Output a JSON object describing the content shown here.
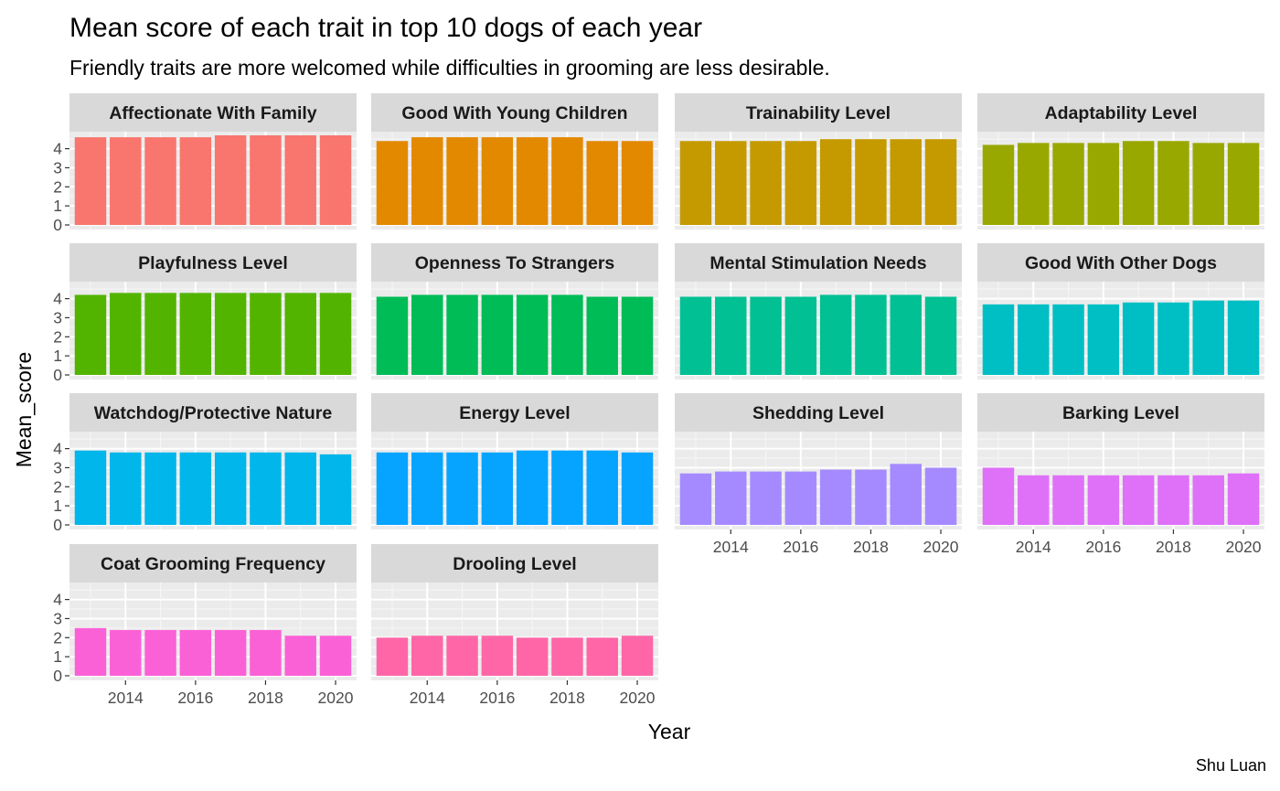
{
  "chart_data": {
    "type": "bar",
    "title": "Mean score of each trait in top 10 dogs of each year",
    "subtitle": "Friendly traits are more welcomed while difficulties in grooming are less desirable.",
    "xlabel": "Year",
    "ylabel": "Mean_score",
    "caption": "Shu Luan",
    "x": [
      2013,
      2014,
      2015,
      2016,
      2017,
      2018,
      2019,
      2020
    ],
    "x_ticks": [
      2014,
      2016,
      2018,
      2020
    ],
    "y_ticks": [
      0,
      1,
      2,
      3,
      4
    ],
    "ylim": [
      0,
      5
    ],
    "grid": true,
    "facets": [
      {
        "name": "Affectionate With Family",
        "color": "#F8766D",
        "values": [
          4.6,
          4.6,
          4.6,
          4.6,
          4.7,
          4.7,
          4.7,
          4.7
        ]
      },
      {
        "name": "Good With Young Children",
        "color": "#E38900",
        "values": [
          4.4,
          4.6,
          4.6,
          4.6,
          4.6,
          4.6,
          4.4,
          4.4
        ]
      },
      {
        "name": "Trainability Level",
        "color": "#C49A00",
        "values": [
          4.4,
          4.4,
          4.4,
          4.4,
          4.5,
          4.5,
          4.5,
          4.5
        ]
      },
      {
        "name": "Adaptability Level",
        "color": "#99A800",
        "values": [
          4.2,
          4.3,
          4.3,
          4.3,
          4.4,
          4.4,
          4.3,
          4.3
        ]
      },
      {
        "name": "Playfulness Level",
        "color": "#53B400",
        "values": [
          4.2,
          4.3,
          4.3,
          4.3,
          4.3,
          4.3,
          4.3,
          4.3
        ]
      },
      {
        "name": "Openness To Strangers",
        "color": "#00BC56",
        "values": [
          4.1,
          4.2,
          4.2,
          4.2,
          4.2,
          4.2,
          4.1,
          4.1
        ]
      },
      {
        "name": "Mental Stimulation Needs",
        "color": "#00C094",
        "values": [
          4.1,
          4.1,
          4.1,
          4.1,
          4.2,
          4.2,
          4.2,
          4.1
        ]
      },
      {
        "name": "Good With Other Dogs",
        "color": "#00BFC4",
        "values": [
          3.7,
          3.7,
          3.7,
          3.7,
          3.8,
          3.8,
          3.9,
          3.9
        ]
      },
      {
        "name": "Watchdog/Protective Nature",
        "color": "#00B6EB",
        "values": [
          3.9,
          3.8,
          3.8,
          3.8,
          3.8,
          3.8,
          3.8,
          3.7
        ]
      },
      {
        "name": "Energy Level",
        "color": "#06A4FF",
        "values": [
          3.8,
          3.8,
          3.8,
          3.8,
          3.9,
          3.9,
          3.9,
          3.8
        ]
      },
      {
        "name": "Shedding Level",
        "color": "#A58AFF",
        "values": [
          2.7,
          2.8,
          2.8,
          2.8,
          2.9,
          2.9,
          3.2,
          3.0
        ]
      },
      {
        "name": "Barking Level",
        "color": "#DF70F8",
        "values": [
          3.0,
          2.6,
          2.6,
          2.6,
          2.6,
          2.6,
          2.6,
          2.7
        ]
      },
      {
        "name": "Coat Grooming Frequency",
        "color": "#FB61D7",
        "values": [
          2.5,
          2.4,
          2.4,
          2.4,
          2.4,
          2.4,
          2.1,
          2.1
        ]
      },
      {
        "name": "Drooling Level",
        "color": "#FF66A8",
        "values": [
          2.0,
          2.1,
          2.1,
          2.1,
          2.0,
          2.0,
          2.0,
          2.1
        ]
      }
    ]
  }
}
